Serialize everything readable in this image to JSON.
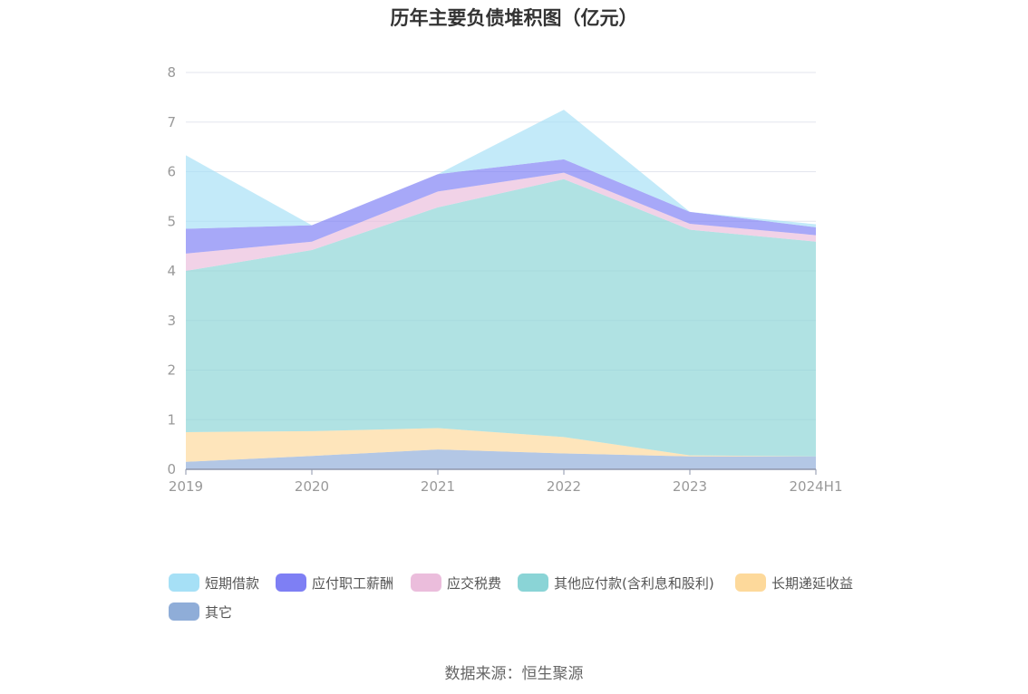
{
  "title": "历年主要负债堆积图（亿元）",
  "source": "数据来源：恒生聚源",
  "chart_data": {
    "type": "area",
    "stacked": true,
    "title": "历年主要负债堆积图（亿元）",
    "categories": [
      "2019",
      "2020",
      "2021",
      "2022",
      "2023",
      "2024H1"
    ],
    "ylim": [
      0,
      8
    ],
    "yticks": [
      "0",
      "1",
      "2",
      "3",
      "4",
      "5",
      "6",
      "7",
      "8"
    ],
    "grid": true,
    "legend_position": "bottom",
    "series": [
      {
        "name": "其它",
        "color": "#8fadd8",
        "values": [
          0.15,
          0.27,
          0.4,
          0.32,
          0.26,
          0.26
        ]
      },
      {
        "name": "长期递延收益",
        "color": "#fdd99b",
        "values": [
          0.6,
          0.5,
          0.43,
          0.33,
          0.02,
          0.0
        ]
      },
      {
        "name": "其他应付款(含利息和股利)",
        "color": "#8ad4d6",
        "values": [
          3.25,
          3.65,
          4.45,
          5.2,
          4.55,
          4.33
        ]
      },
      {
        "name": "应交税费",
        "color": "#ebbddc",
        "values": [
          0.35,
          0.17,
          0.32,
          0.13,
          0.12,
          0.13
        ]
      },
      {
        "name": "应付职工薪酬",
        "color": "#7e7ff4",
        "values": [
          0.5,
          0.33,
          0.35,
          0.27,
          0.24,
          0.16
        ]
      },
      {
        "name": "短期借款",
        "color": "#a6e0f6",
        "values": [
          1.48,
          0.0,
          0.0,
          1.0,
          0.0,
          0.06
        ]
      }
    ],
    "legend_order": [
      "短期借款",
      "应付职工薪酬",
      "应交税费",
      "其他应付款(含利息和股利)",
      "长期递延收益",
      "其它"
    ]
  }
}
